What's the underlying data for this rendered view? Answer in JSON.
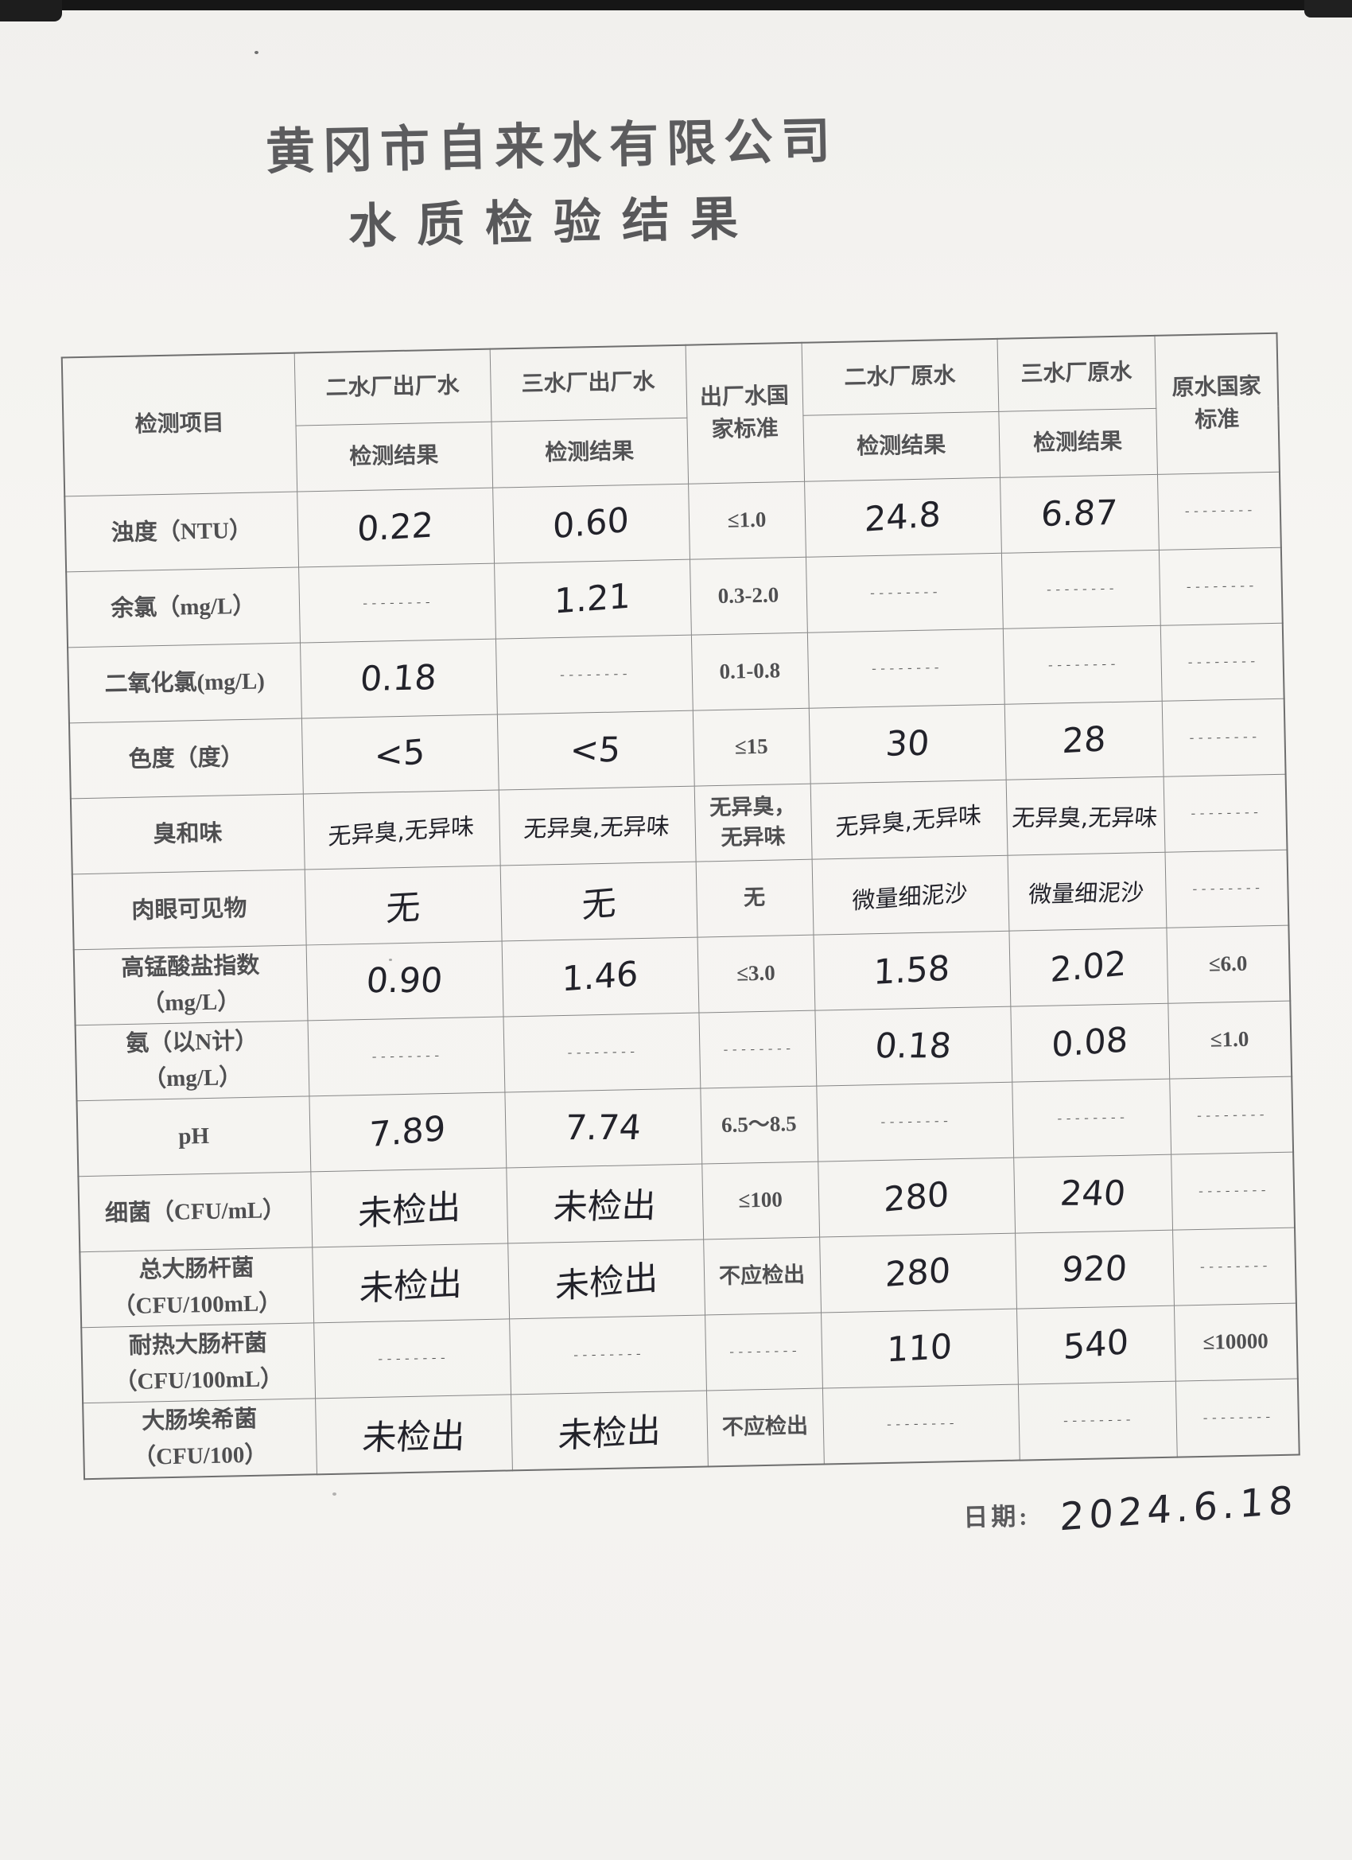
{
  "page": {
    "title": "黄冈市自来水有限公司",
    "subtitle": "水质检验结果",
    "date_label": "日期:",
    "date_value": "2024.6.18"
  },
  "colors": {
    "paper": "#f5f4f1",
    "handwriting_ink": "#22222a",
    "printed_ink": "#4f4f51",
    "table_line": "#868686"
  },
  "table": {
    "header": {
      "item": "检测项目",
      "plant2_out": "二水厂出厂水",
      "plant2_out_sub": "检测结果",
      "plant3_out": "三水厂出厂水",
      "plant3_out_sub": "检测结果",
      "out_standard": "出厂水国\n家标准",
      "plant2_raw": "二水厂原水",
      "plant2_raw_sub": "检测结果",
      "plant3_raw": "三水厂原水",
      "plant3_raw_sub": "检测结果",
      "raw_standard": "原水国家\n标准"
    },
    "rows": [
      {
        "item": "浊度（NTU）",
        "cells": [
          {
            "t": "0.22",
            "s": "hand"
          },
          {
            "t": "0.60",
            "s": "hand"
          },
          {
            "t": "≤1.0",
            "s": "print"
          },
          {
            "t": "24.8",
            "s": "hand"
          },
          {
            "t": "6.87",
            "s": "hand"
          },
          {
            "t": "--------",
            "s": "dash"
          }
        ]
      },
      {
        "item": "余氯（mg/L）",
        "cells": [
          {
            "t": "--------",
            "s": "dash"
          },
          {
            "t": "1.21",
            "s": "hand"
          },
          {
            "t": "0.3-2.0",
            "s": "print"
          },
          {
            "t": "--------",
            "s": "dash"
          },
          {
            "t": "--------",
            "s": "dash"
          },
          {
            "t": "--------",
            "s": "dash"
          }
        ]
      },
      {
        "item": "二氧化氯(mg/L)",
        "cells": [
          {
            "t": "0.18",
            "s": "hand"
          },
          {
            "t": "--------",
            "s": "dash"
          },
          {
            "t": "0.1-0.8",
            "s": "print"
          },
          {
            "t": "--------",
            "s": "dash"
          },
          {
            "t": "--------",
            "s": "dash"
          },
          {
            "t": "--------",
            "s": "dash"
          }
        ]
      },
      {
        "item": "色度（度）",
        "cells": [
          {
            "t": "<5",
            "s": "hand"
          },
          {
            "t": "<5",
            "s": "hand"
          },
          {
            "t": "≤15",
            "s": "print"
          },
          {
            "t": "30",
            "s": "hand"
          },
          {
            "t": "28",
            "s": "hand"
          },
          {
            "t": "--------",
            "s": "dash"
          }
        ]
      },
      {
        "item": "臭和味",
        "cells": [
          {
            "t": "无异臭,无异味",
            "s": "hand"
          },
          {
            "t": "无异臭,无异味",
            "s": "hand"
          },
          {
            "t": "无异臭，\n无异味",
            "s": "print"
          },
          {
            "t": "无异臭,无异味",
            "s": "hand"
          },
          {
            "t": "无异臭,无异味",
            "s": "hand"
          },
          {
            "t": "--------",
            "s": "dash"
          }
        ]
      },
      {
        "item": "肉眼可见物",
        "cells": [
          {
            "t": "无",
            "s": "hand"
          },
          {
            "t": "无",
            "s": "hand"
          },
          {
            "t": "无",
            "s": "print"
          },
          {
            "t": "微量细泥沙",
            "s": "hand"
          },
          {
            "t": "微量细泥沙",
            "s": "hand"
          },
          {
            "t": "--------",
            "s": "dash"
          }
        ]
      },
      {
        "item": "高锰酸盐指数\n（mg/L）",
        "cells": [
          {
            "t": "0.90",
            "s": "hand"
          },
          {
            "t": "1.46",
            "s": "hand"
          },
          {
            "t": "≤3.0",
            "s": "print"
          },
          {
            "t": "1.58",
            "s": "hand"
          },
          {
            "t": "2.02",
            "s": "hand"
          },
          {
            "t": "≤6.0",
            "s": "print"
          }
        ]
      },
      {
        "item": "氨（以N计）\n（mg/L）",
        "cells": [
          {
            "t": "--------",
            "s": "dash"
          },
          {
            "t": "--------",
            "s": "dash"
          },
          {
            "t": "--------",
            "s": "dash"
          },
          {
            "t": "0.18",
            "s": "hand"
          },
          {
            "t": "0.08",
            "s": "hand"
          },
          {
            "t": "≤1.0",
            "s": "print"
          }
        ]
      },
      {
        "item": "pH",
        "cells": [
          {
            "t": "7.89",
            "s": "hand"
          },
          {
            "t": "7.74",
            "s": "hand"
          },
          {
            "t": "6.5～8.5",
            "s": "print"
          },
          {
            "t": "--------",
            "s": "dash"
          },
          {
            "t": "--------",
            "s": "dash"
          },
          {
            "t": "--------",
            "s": "dash"
          }
        ]
      },
      {
        "item": "细菌（CFU/mL）",
        "cells": [
          {
            "t": "未检出",
            "s": "hand"
          },
          {
            "t": "未检出",
            "s": "hand"
          },
          {
            "t": "≤100",
            "s": "print"
          },
          {
            "t": "280",
            "s": "hand"
          },
          {
            "t": "240",
            "s": "hand"
          },
          {
            "t": "--------",
            "s": "dash"
          }
        ]
      },
      {
        "item": "总大肠杆菌\n（CFU/100mL）",
        "cells": [
          {
            "t": "未检出",
            "s": "hand"
          },
          {
            "t": "未检出",
            "s": "hand"
          },
          {
            "t": "不应检出",
            "s": "print"
          },
          {
            "t": "280",
            "s": "hand"
          },
          {
            "t": "920",
            "s": "hand"
          },
          {
            "t": "--------",
            "s": "dash"
          }
        ]
      },
      {
        "item": "耐热大肠杆菌\n（CFU/100mL）",
        "cells": [
          {
            "t": "--------",
            "s": "dash"
          },
          {
            "t": "--------",
            "s": "dash"
          },
          {
            "t": "--------",
            "s": "dash"
          },
          {
            "t": "110",
            "s": "hand"
          },
          {
            "t": "540",
            "s": "hand"
          },
          {
            "t": "≤10000",
            "s": "print"
          }
        ]
      },
      {
        "item": "大肠埃希菌\n（CFU/100）",
        "cells": [
          {
            "t": "未检出",
            "s": "hand"
          },
          {
            "t": "未检出",
            "s": "hand"
          },
          {
            "t": "不应检出",
            "s": "print"
          },
          {
            "t": "--------",
            "s": "dash"
          },
          {
            "t": "--------",
            "s": "dash"
          },
          {
            "t": "--------",
            "s": "dash"
          }
        ]
      }
    ]
  }
}
